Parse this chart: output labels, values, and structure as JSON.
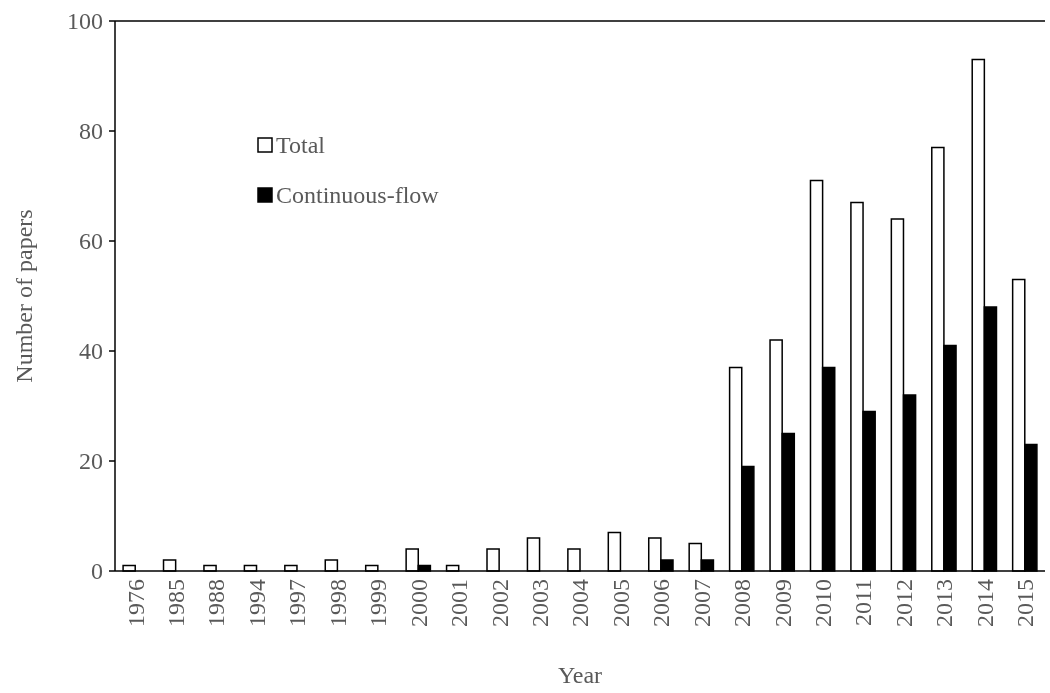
{
  "chart_data": {
    "type": "bar",
    "xlabel": "Year",
    "ylabel": "Number of papers",
    "categories": [
      "1976",
      "1985",
      "1988",
      "1994",
      "1997",
      "1998",
      "1999",
      "2000",
      "2001",
      "2002",
      "2003",
      "2004",
      "2005",
      "2006",
      "2007",
      "2008",
      "2009",
      "2010",
      "2011",
      "2012",
      "2013",
      "2014",
      "2015"
    ],
    "series": [
      {
        "name": "Total",
        "color": "#ffffff",
        "values": [
          1,
          2,
          1,
          1,
          1,
          2,
          1,
          4,
          1,
          4,
          6,
          4,
          7,
          6,
          5,
          37,
          42,
          71,
          67,
          64,
          77,
          93,
          53
        ]
      },
      {
        "name": "Continuous-flow",
        "color": "#000000",
        "values": [
          0,
          0,
          0,
          0,
          0,
          0,
          0,
          1,
          0,
          0,
          0,
          0,
          0,
          2,
          2,
          19,
          25,
          37,
          29,
          32,
          41,
          48,
          23
        ]
      }
    ],
    "ylim": [
      0,
      100
    ],
    "yticks": [
      0,
      20,
      40,
      60,
      80,
      100
    ],
    "grid": false,
    "legend": "top left"
  }
}
